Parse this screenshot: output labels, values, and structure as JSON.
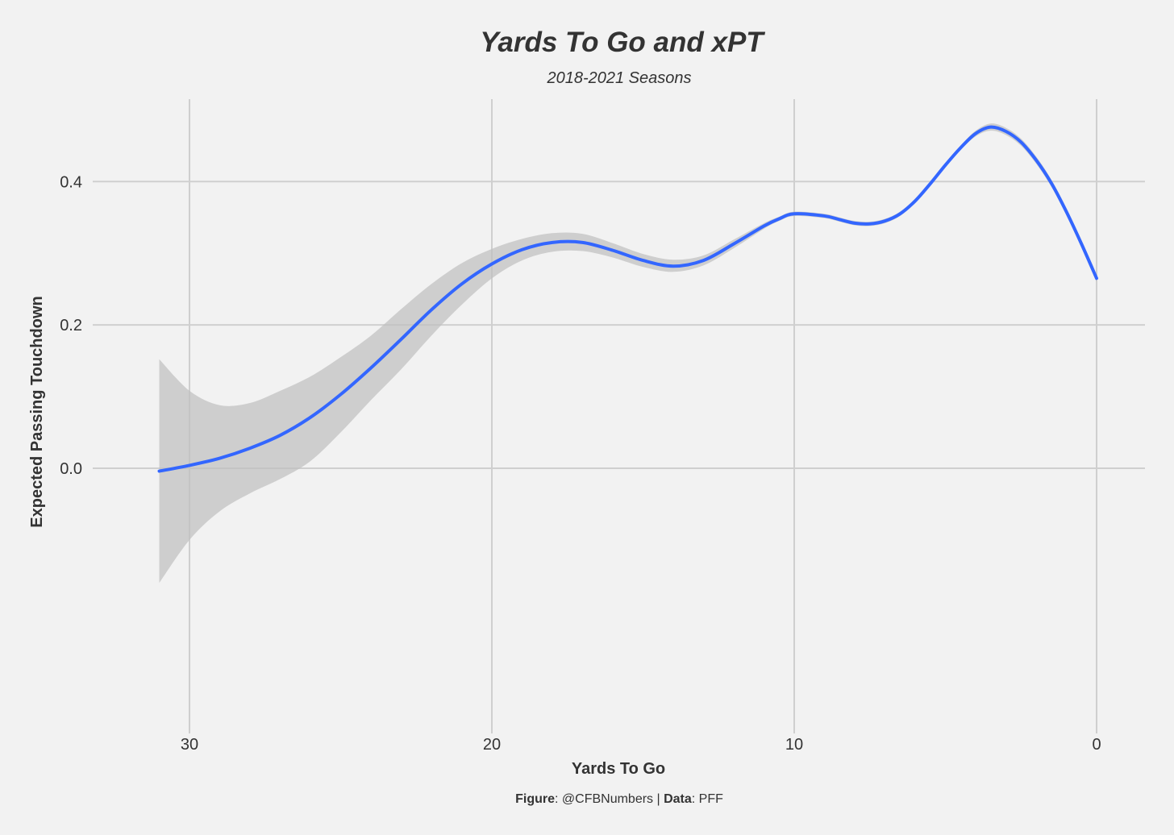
{
  "chart_data": {
    "type": "line",
    "title": "Yards To Go and xPT",
    "subtitle": "2018-2021 Seasons",
    "xlabel": "Yards To Go",
    "ylabel": "Expected Passing Touchdown",
    "x_reversed": true,
    "xlim": [
      33.2,
      -1.6
    ],
    "ylim": [
      -0.37,
      0.515
    ],
    "x_ticks": [
      30,
      20,
      10,
      0
    ],
    "x_tick_labels": [
      "30",
      "20",
      "10",
      "0"
    ],
    "y_ticks": [
      0.0,
      0.2,
      0.4
    ],
    "y_tick_labels": [
      "0.0",
      "0.2",
      "0.4"
    ],
    "grid": true,
    "caption": {
      "figure_label": "Figure",
      "figure_text": ": @CFBNumbers | ",
      "data_label": "Data",
      "data_text": ": PFF"
    },
    "colors": {
      "line": "#3366ff",
      "ribbon": "#bfbfbf",
      "background": "#f2f2f2",
      "grid": "#cfcfcf"
    },
    "series": [
      {
        "x": [
          31,
          30,
          29,
          28,
          27,
          26,
          25,
          24,
          23,
          22,
          21,
          20,
          19,
          18,
          17,
          16,
          15,
          14,
          13,
          12,
          11,
          10.5,
          10,
          9,
          8.5,
          8,
          7.5,
          7,
          6.5,
          6,
          5.5,
          5,
          4.5,
          4,
          3.5,
          3,
          2.5,
          2,
          1.5,
          1,
          0.5,
          0
        ],
        "y": [
          -0.004,
          0.004,
          0.014,
          0.028,
          0.046,
          0.071,
          0.103,
          0.14,
          0.18,
          0.221,
          0.257,
          0.285,
          0.305,
          0.315,
          0.315,
          0.304,
          0.29,
          0.282,
          0.29,
          0.313,
          0.338,
          0.348,
          0.355,
          0.352,
          0.347,
          0.342,
          0.341,
          0.345,
          0.355,
          0.373,
          0.397,
          0.423,
          0.447,
          0.467,
          0.476,
          0.47,
          0.455,
          0.43,
          0.398,
          0.358,
          0.313,
          0.265
        ],
        "y_low": [
          -0.16,
          -0.1,
          -0.06,
          -0.035,
          -0.015,
          0.01,
          0.05,
          0.095,
          0.138,
          0.185,
          0.228,
          0.265,
          0.29,
          0.302,
          0.303,
          0.294,
          0.281,
          0.274,
          0.283,
          0.307,
          0.334,
          0.345,
          0.352,
          0.349,
          0.344,
          0.339,
          0.338,
          0.342,
          0.352,
          0.37,
          0.394,
          0.42,
          0.444,
          0.463,
          0.471,
          0.465,
          0.45,
          0.425,
          0.393,
          0.353,
          0.308,
          0.26
        ],
        "y_high": [
          0.152,
          0.108,
          0.088,
          0.091,
          0.108,
          0.128,
          0.155,
          0.185,
          0.222,
          0.257,
          0.286,
          0.306,
          0.32,
          0.328,
          0.327,
          0.314,
          0.299,
          0.291,
          0.297,
          0.319,
          0.342,
          0.351,
          0.358,
          0.355,
          0.35,
          0.345,
          0.344,
          0.348,
          0.358,
          0.376,
          0.4,
          0.426,
          0.45,
          0.471,
          0.481,
          0.475,
          0.46,
          0.435,
          0.403,
          0.363,
          0.318,
          0.27
        ]
      }
    ]
  }
}
